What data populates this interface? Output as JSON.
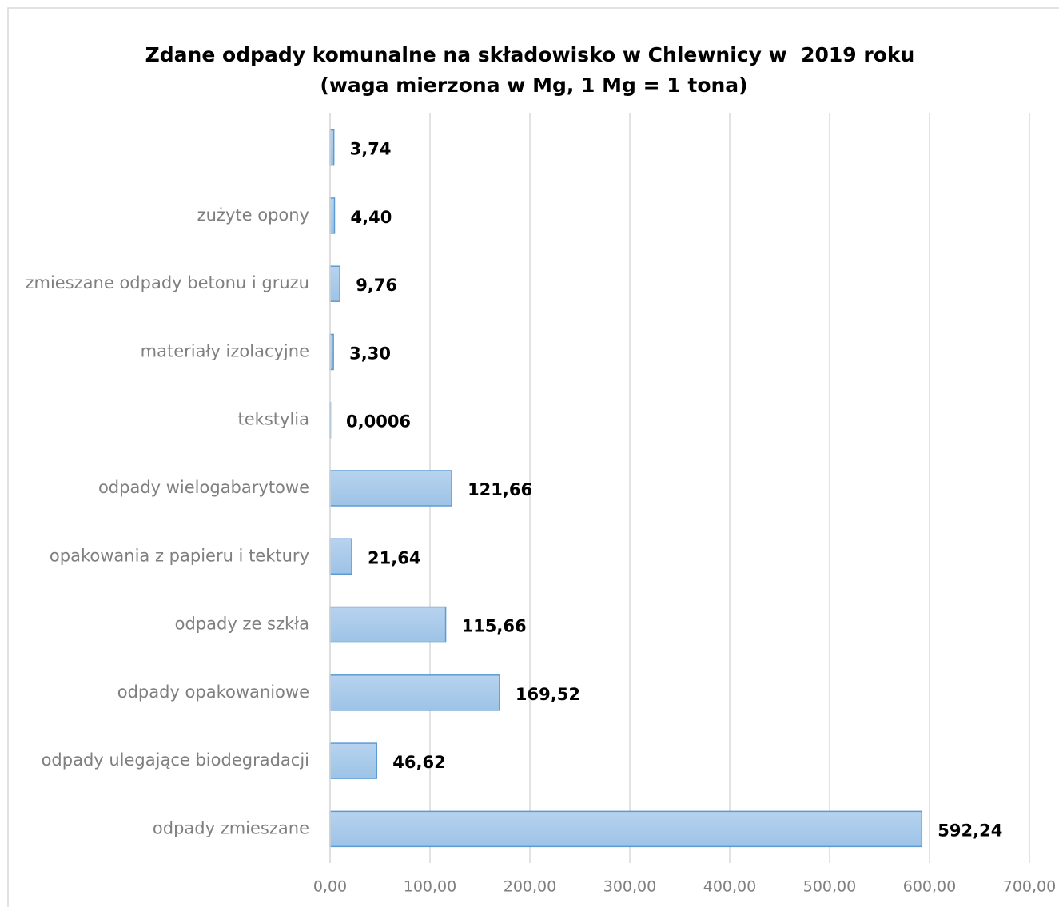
{
  "chart_data": {
    "type": "barh",
    "title": "Zdane odpady komunalne na składowisko w Chlewnicy w  2019 roku",
    "subtitle": "(waga mierzona w Mg, 1 Mg = 1 tona)",
    "categories": [
      null,
      "zużyte opony",
      "zmieszane odpady betonu i gruzu",
      "materiały izolacyjne",
      "tekstylia",
      "odpady wielogabarytowe",
      "opakowania z papieru i tektury",
      "odpady ze szkła",
      "odpady opakowaniowe",
      "odpady ulegające biodegradacji",
      "odpady zmieszane"
    ],
    "values": [
      3.74,
      4.4,
      9.76,
      3.3,
      0.0006,
      121.66,
      21.64,
      115.66,
      169.52,
      46.62,
      592.24
    ],
    "value_labels": [
      "3,74",
      "4,40",
      "9,76",
      "3,30",
      "0,0006",
      "121,66",
      "21,64",
      "115,66",
      "169,52",
      "46,62",
      "592,24"
    ],
    "color": "#9dc3e6",
    "xlim": [
      0,
      700
    ],
    "xticks": [
      {
        "value": 0,
        "label": "0,00"
      },
      {
        "value": 100,
        "label": "100,00"
      },
      {
        "value": 200,
        "label": "200,00"
      },
      {
        "value": 300,
        "label": "300,00"
      },
      {
        "value": 400,
        "label": "400,00"
      },
      {
        "value": 500,
        "label": "500,00"
      },
      {
        "value": 600,
        "label": "600,00"
      },
      {
        "value": 700,
        "label": "700,00"
      }
    ],
    "grid": true
  }
}
